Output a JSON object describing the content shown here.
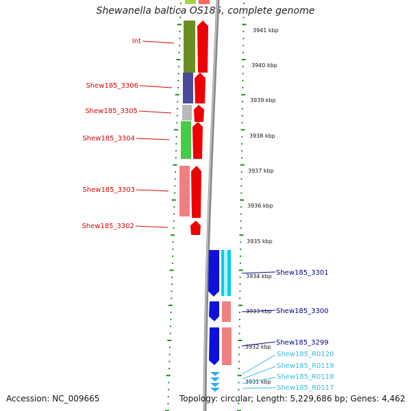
{
  "title": "Shewanella baltica OS185, complete genome",
  "accession": "Accession: NC_009665",
  "topology": "Topology: circular; Length: 5,229,686 bp; Genes: 4,462",
  "colors": {
    "label_red": "#dd0000",
    "label_navy": "#00008b",
    "label_cyan": "#33bbee",
    "tick_green": "#1a8a1a",
    "backbone": "#888888"
  },
  "scale_labels": [
    "3941 kbp",
    "3940 kbp",
    "3939 kbp",
    "3938 kbp",
    "3937 kbp",
    "3936 kbp",
    "3935 kbp",
    "3934 kbp",
    "3933 kbp",
    "3932 kbp",
    "3931 kbp"
  ],
  "left_labels": [
    "Int",
    "Shew185_3306",
    "Shew185_3305",
    "Shew185_3304",
    "Shew185_3303",
    "Shew185_3302"
  ],
  "right_labels": [
    "Shew185_3301",
    "Shew185_3300",
    "Shew185_3299"
  ],
  "rna_labels": [
    "Shew185_R0120",
    "Shew185_R0119",
    "Shew185_R0118",
    "Shew185_R0117"
  ]
}
